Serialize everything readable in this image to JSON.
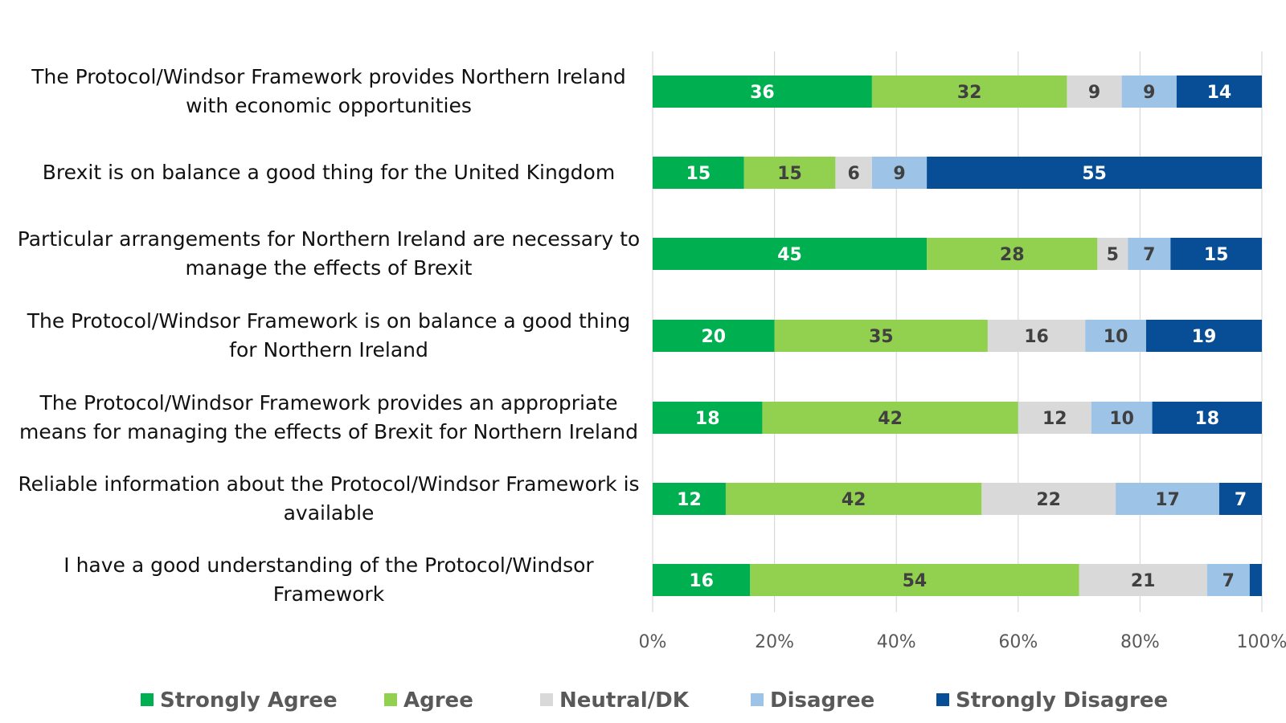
{
  "chart_data": {
    "type": "bar",
    "orientation": "horizontal",
    "stacked": true,
    "title": "",
    "xlabel": "",
    "ylabel": "",
    "xlim": [
      0,
      100
    ],
    "x_ticks": [
      "0%",
      "20%",
      "40%",
      "60%",
      "80%",
      "100%"
    ],
    "grid": true,
    "legend_position": "bottom",
    "categories": [
      [
        "The Protocol/Windsor Framework provides Northern Ireland",
        "with economic opportunities"
      ],
      [
        "Brexit is on balance a good thing for the United Kingdom"
      ],
      [
        "Particular arrangements for Northern Ireland are necessary to",
        "manage the effects of Brexit"
      ],
      [
        "The Protocol/Windsor Framework is on balance a good thing",
        "for Northern Ireland"
      ],
      [
        "The Protocol/Windsor Framework provides an appropriate",
        "means for managing the effects of Brexit for Northern Ireland"
      ],
      [
        "Reliable information about the Protocol/Windsor Framework is",
        "available"
      ],
      [
        "I have a good understanding of the Protocol/Windsor",
        "Framework"
      ]
    ],
    "series": [
      {
        "name": "Strongly Agree",
        "color": "#00b050",
        "label_color": "#ffffff",
        "values": [
          36,
          15,
          45,
          20,
          18,
          12,
          16
        ],
        "show_labels": [
          true,
          true,
          true,
          true,
          true,
          true,
          true
        ]
      },
      {
        "name": "Agree",
        "color": "#92d050",
        "label_color": "#404040",
        "values": [
          32,
          15,
          28,
          35,
          42,
          42,
          54
        ],
        "show_labels": [
          true,
          true,
          true,
          true,
          true,
          true,
          true
        ]
      },
      {
        "name": "Neutral/DK",
        "color": "#d9d9d9",
        "label_color": "#404040",
        "values": [
          9,
          6,
          5,
          16,
          12,
          22,
          21
        ],
        "show_labels": [
          true,
          true,
          true,
          true,
          true,
          true,
          true
        ]
      },
      {
        "name": "Disagree",
        "color": "#9dc3e6",
        "label_color": "#404040",
        "values": [
          9,
          9,
          7,
          10,
          10,
          17,
          7
        ],
        "show_labels": [
          true,
          true,
          true,
          true,
          true,
          true,
          true
        ]
      },
      {
        "name": "Strongly Disagree",
        "color": "#084e96",
        "label_color": "#ffffff",
        "values": [
          14,
          55,
          15,
          19,
          18,
          7,
          2
        ],
        "show_labels": [
          true,
          true,
          true,
          true,
          true,
          true,
          false
        ]
      }
    ]
  }
}
